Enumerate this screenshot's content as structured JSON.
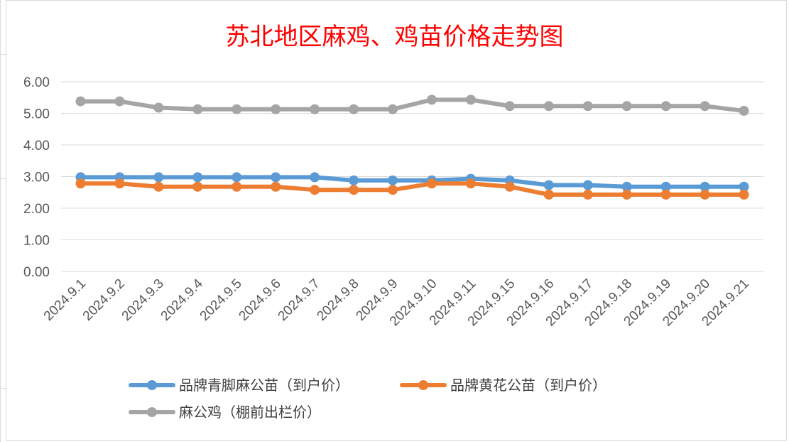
{
  "chart_data": {
    "type": "line",
    "title": "苏北地区麻鸡、鸡苗价格走势图",
    "xlabel": "",
    "ylabel": "",
    "ylim": [
      0,
      6
    ],
    "yticks": [
      "0.00",
      "1.00",
      "2.00",
      "3.00",
      "4.00",
      "5.00",
      "6.00"
    ],
    "grid": true,
    "legend_position": "bottom",
    "categories": [
      "2024.9.1",
      "2024.9.2",
      "2024.9.3",
      "2024.9.4",
      "2024.9.5",
      "2024.9.6",
      "2024.9.7",
      "2024.9.8",
      "2024.9.9",
      "2024.9.10",
      "2024.9.11",
      "2024.9.15",
      "2024.9.16",
      "2024.9.17",
      "2024.9.18",
      "2024.9.19",
      "2024.9.20",
      "2024.9.21"
    ],
    "series": [
      {
        "name": "品牌青脚麻公苗（到户价）",
        "color": "#5b9bd5",
        "values": [
          2.98,
          2.98,
          2.98,
          2.98,
          2.98,
          2.98,
          2.98,
          2.88,
          2.88,
          2.88,
          2.93,
          2.88,
          2.73,
          2.73,
          2.68,
          2.68,
          2.68,
          2.68
        ]
      },
      {
        "name": "品牌黄花公苗（到户价）",
        "color": "#ed7d31",
        "values": [
          2.78,
          2.78,
          2.68,
          2.68,
          2.68,
          2.68,
          2.58,
          2.58,
          2.58,
          2.78,
          2.78,
          2.68,
          2.43,
          2.43,
          2.43,
          2.43,
          2.43,
          2.43
        ]
      },
      {
        "name": "麻公鸡（棚前出栏价）",
        "color": "#a5a5a5",
        "values": [
          5.38,
          5.38,
          5.18,
          5.13,
          5.13,
          5.13,
          5.13,
          5.13,
          5.13,
          5.43,
          5.43,
          5.23,
          5.23,
          5.23,
          5.23,
          5.23,
          5.23,
          5.08
        ]
      }
    ]
  }
}
